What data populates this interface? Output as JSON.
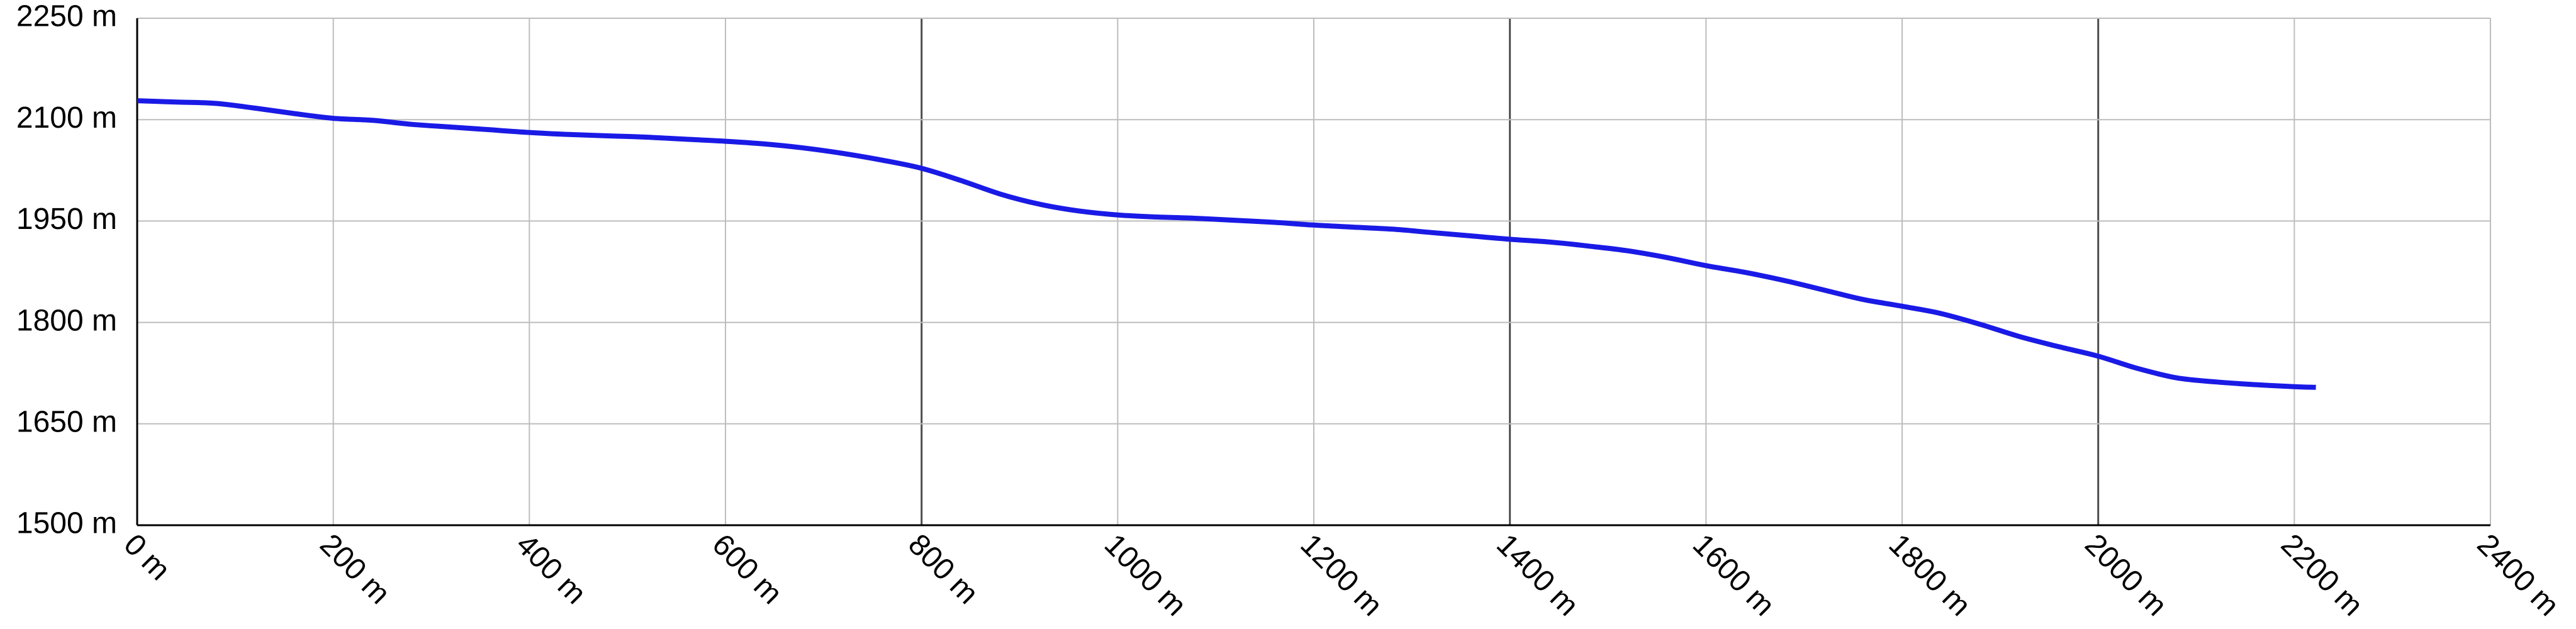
{
  "chart_data": {
    "type": "line",
    "title": "",
    "xlabel": "",
    "ylabel": "",
    "xlim": [
      0,
      2400
    ],
    "ylim": [
      1500,
      2250
    ],
    "grid": true,
    "x_ticks": [
      0,
      200,
      400,
      600,
      800,
      1000,
      1200,
      1400,
      1600,
      1800,
      2000,
      2200,
      2400
    ],
    "x_tick_labels": [
      "0 m",
      "200 m",
      "400 m",
      "600 m",
      "800 m",
      "1000 m",
      "1200 m",
      "1400 m",
      "1600 m",
      "1800 m",
      "2000 m",
      "2200 m",
      "2400 m"
    ],
    "y_ticks": [
      1500,
      1650,
      1800,
      1950,
      2100,
      2250
    ],
    "y_tick_labels": [
      "1500 m",
      "1650 m",
      "1800 m",
      "1950 m",
      "2100 m",
      "2250 m"
    ],
    "series": [
      {
        "color": "#1a1ae6",
        "x": [
          0,
          40,
          80,
          120,
          160,
          200,
          240,
          280,
          320,
          360,
          400,
          440,
          480,
          520,
          560,
          600,
          640,
          680,
          720,
          760,
          800,
          840,
          880,
          920,
          960,
          1000,
          1040,
          1080,
          1120,
          1160,
          1200,
          1240,
          1280,
          1320,
          1360,
          1400,
          1440,
          1480,
          1520,
          1560,
          1600,
          1640,
          1680,
          1720,
          1760,
          1800,
          1840,
          1880,
          1920,
          1960,
          2000,
          2040,
          2080,
          2120,
          2160,
          2200,
          2222
        ],
        "y": [
          2128,
          2126,
          2124,
          2117,
          2109,
          2102,
          2099,
          2093,
          2089,
          2085,
          2081,
          2078,
          2076,
          2074,
          2071,
          2068,
          2064,
          2058,
          2050,
          2040,
          2028,
          2010,
          1990,
          1975,
          1965,
          1959,
          1956,
          1954,
          1951,
          1948,
          1944,
          1941,
          1938,
          1933,
          1928,
          1923,
          1919,
          1913,
          1906,
          1896,
          1884,
          1874,
          1862,
          1848,
          1834,
          1824,
          1813,
          1797,
          1779,
          1764,
          1750,
          1732,
          1718,
          1712,
          1708,
          1705,
          1704
        ]
      }
    ]
  }
}
